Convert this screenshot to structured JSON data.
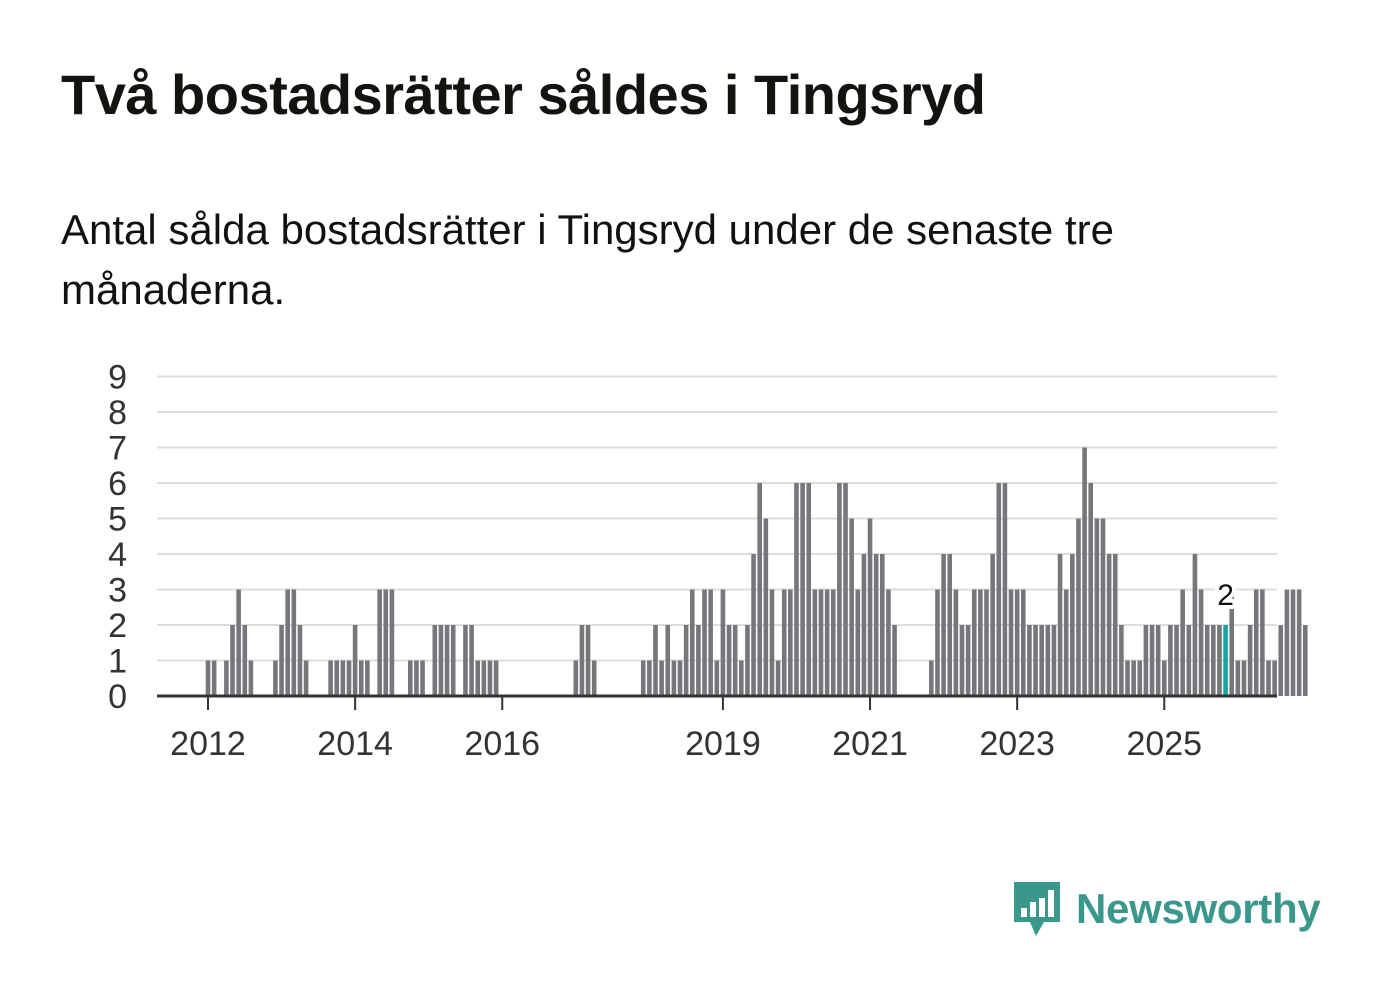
{
  "title": "Två bostadsrätter såldes i Tingsryd",
  "subtitle": "Antal sålda bostadsrätter i Tingsryd under de senaste tre månaderna.",
  "brand": {
    "name": "Newsworthy",
    "color": "#3a978c"
  },
  "colors": {
    "bar": "#77767b",
    "highlight": "#17a3a3",
    "grid": "#dddddd",
    "axis": "#333333",
    "tick_text": "#333333"
  },
  "chart_data": {
    "type": "bar",
    "title": "Två bostadsrätter såldes i Tingsryd",
    "xlabel": "",
    "ylabel": "",
    "ylim": [
      0,
      9
    ],
    "yticks": [
      "0",
      "1",
      "2",
      "3",
      "4",
      "5",
      "6",
      "7",
      "8",
      "9"
    ],
    "xticks": [
      {
        "label": "2012",
        "month_index": 0
      },
      {
        "label": "2014",
        "month_index": 24
      },
      {
        "label": "2016",
        "month_index": 48
      },
      {
        "label": "2019",
        "month_index": 84
      },
      {
        "label": "2021",
        "month_index": 108
      },
      {
        "label": "2023",
        "month_index": 132
      },
      {
        "label": "2025",
        "month_index": 156
      }
    ],
    "period_start": "2011-03",
    "unit": "month",
    "values": [
      0,
      0,
      0,
      0,
      0,
      0,
      0,
      0,
      0,
      0,
      1,
      1,
      0,
      1,
      2,
      3,
      2,
      1,
      0,
      0,
      0,
      1,
      2,
      3,
      3,
      2,
      1,
      0,
      0,
      0,
      1,
      1,
      1,
      1,
      2,
      1,
      1,
      0,
      3,
      3,
      3,
      0,
      0,
      1,
      1,
      1,
      0,
      2,
      2,
      2,
      2,
      0,
      2,
      2,
      1,
      1,
      1,
      1,
      0,
      0,
      0,
      0,
      0,
      0,
      0,
      0,
      0,
      0,
      0,
      0,
      1,
      2,
      2,
      1,
      0,
      0,
      0,
      0,
      0,
      0,
      0,
      1,
      1,
      2,
      1,
      2,
      1,
      1,
      2,
      3,
      2,
      3,
      3,
      1,
      3,
      2,
      2,
      1,
      2,
      4,
      6,
      5,
      3,
      1,
      3,
      3,
      6,
      6,
      6,
      3,
      3,
      3,
      3,
      6,
      6,
      5,
      3,
      4,
      5,
      4,
      4,
      3,
      2,
      0,
      0,
      0,
      0,
      0,
      1,
      3,
      4,
      4,
      3,
      2,
      2,
      3,
      3,
      3,
      4,
      6,
      6,
      3,
      3,
      3,
      2,
      2,
      2,
      2,
      2,
      4,
      3,
      4,
      5,
      7,
      6,
      5,
      5,
      4,
      4,
      2,
      1,
      1,
      1,
      2,
      2,
      2,
      1,
      2,
      2,
      3,
      2,
      4,
      3,
      2,
      2,
      2,
      2,
      3,
      1,
      1,
      2,
      3,
      3,
      1,
      1,
      2,
      3,
      3,
      3,
      2
    ],
    "highlight_index": 176,
    "highlight_label": "2"
  }
}
